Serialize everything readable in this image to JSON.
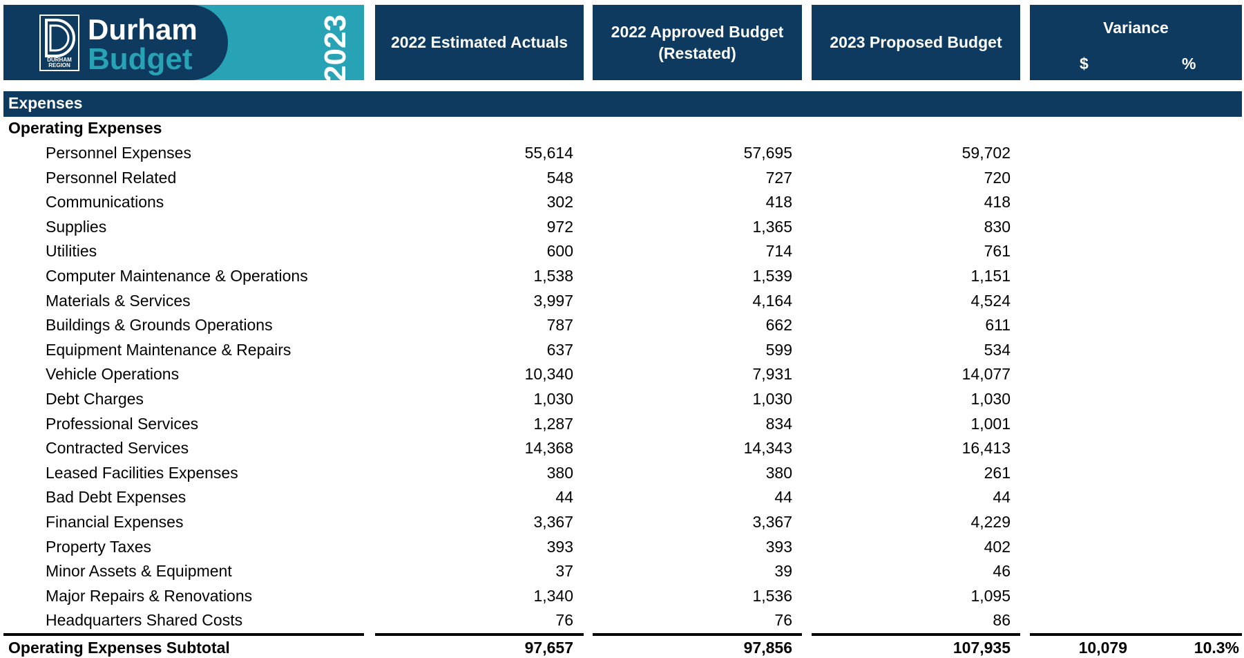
{
  "header": {
    "logo": {
      "title": "Durham",
      "subtitle": "Budget",
      "region": "DURHAM REGION",
      "year": "2023"
    },
    "columns": [
      "2022 Estimated Actuals",
      "2022 Approved Budget (Restated)",
      "2023 Proposed Budget"
    ],
    "variance": {
      "title": "Variance",
      "dollar": "$",
      "percent": "%"
    }
  },
  "section": "Expenses",
  "group": "Operating Expenses",
  "rows": [
    [
      "Personnel Expenses",
      "55,614",
      "57,695",
      "59,702"
    ],
    [
      "Personnel Related",
      "548",
      "727",
      "720"
    ],
    [
      "Communications",
      "302",
      "418",
      "418"
    ],
    [
      "Supplies",
      "972",
      "1,365",
      "830"
    ],
    [
      "Utilities",
      "600",
      "714",
      "761"
    ],
    [
      "Computer Maintenance & Operations",
      "1,538",
      "1,539",
      "1,151"
    ],
    [
      "Materials & Services",
      "3,997",
      "4,164",
      "4,524"
    ],
    [
      "Buildings & Grounds Operations",
      "787",
      "662",
      "611"
    ],
    [
      "Equipment Maintenance & Repairs",
      "637",
      "599",
      "534"
    ],
    [
      "Vehicle Operations",
      "10,340",
      "7,931",
      "14,077"
    ],
    [
      "Debt Charges",
      "1,030",
      "1,030",
      "1,030"
    ],
    [
      "Professional Services",
      "1,287",
      "834",
      "1,001"
    ],
    [
      "Contracted Services",
      "14,368",
      "14,343",
      "16,413"
    ],
    [
      "Leased Facilities Expenses",
      "380",
      "380",
      "261"
    ],
    [
      "Bad Debt Expenses",
      "44",
      "44",
      "44"
    ],
    [
      "Financial Expenses",
      "3,367",
      "3,367",
      "4,229"
    ],
    [
      "Property Taxes",
      "393",
      "393",
      "402"
    ],
    [
      "Minor Assets & Equipment",
      "37",
      "39",
      "46"
    ],
    [
      "Major Repairs & Renovations",
      "1,340",
      "1,536",
      "1,095"
    ],
    [
      "Headquarters Shared Costs",
      "76",
      "76",
      "86"
    ]
  ],
  "subtotal": [
    "Operating Expenses Subtotal",
    "97,657",
    "97,856",
    "107,935",
    "10,079",
    "10.3%"
  ]
}
